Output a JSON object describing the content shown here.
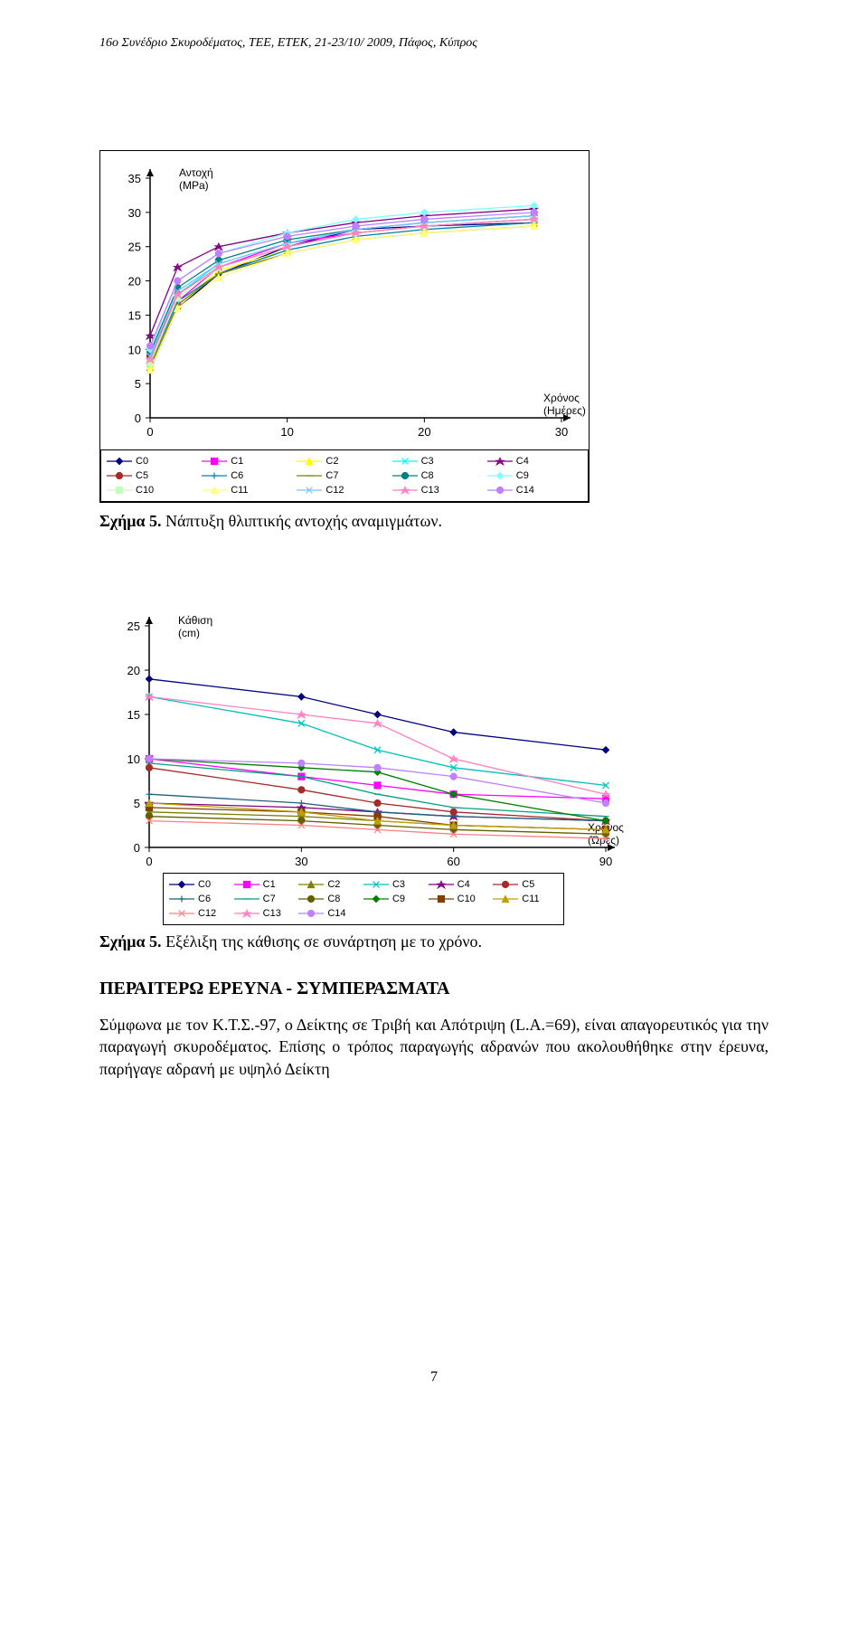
{
  "header": "16ο Συνέδριο Σκυροδέματος, ΤΕΕ, ΕΤΕΚ, 21-23/10/ 2009, Πάφος, Κύπρος",
  "caption1_bold": "Σχήμα 5.",
  "caption1_rest": " Νάπτυξη θλιπτικής αντοχής αναμιγμάτων.",
  "caption2_bold": "Σχήμα 5.",
  "caption2_rest": " Εξέλιξη της κάθισης σε συνάρτηση με το χρόνο.",
  "section_title": "ΠΕΡΑΙΤΕΡΩ ΕΡΕΥΝΑ - ΣΥΜΠΕΡΑΣΜΑΤΑ",
  "paragraph": "Σύμφωνα με τον Κ.Τ.Σ.-97, ο Δείκτης σε Τριβή και Απότριψη (L.A.=69), είναι απαγορευτικός για την παραγωγή σκυροδέματος. Επίσης ο τρόπος παραγωγής αδρανών που ακολουθήθηκε στην έρευνα, παρήγαγε αδρανή με υψηλό Δείκτη",
  "page_number": "7",
  "chart1": {
    "type": "line",
    "y_axis_label_l1": "Αντοχή",
    "y_axis_label_l2": "(MPa)",
    "x_axis_label_l1": "Χρόνος",
    "x_axis_label_l2": "(Ημέρες)",
    "xlim": [
      0,
      30
    ],
    "xtick_step": 10,
    "ylim": [
      0,
      35
    ],
    "ytick_step": 5,
    "background_color": "#ffffff",
    "series": [
      {
        "name": "C0",
        "color": "#000080",
        "marker": "diamond",
        "y": [
          7.0,
          16,
          21,
          25,
          27.5,
          28,
          28.5
        ]
      },
      {
        "name": "C1",
        "color": "#ff00ff",
        "marker": "square",
        "y": [
          8.0,
          17,
          22,
          25.5,
          27,
          28,
          29
        ]
      },
      {
        "name": "C2",
        "color": "#ffff00",
        "marker": "triangle",
        "y": [
          7.5,
          16.5,
          21.5,
          24.5,
          26.5,
          27.5,
          28.5
        ]
      },
      {
        "name": "C3",
        "color": "#00ffff",
        "marker": "x",
        "y": [
          8.5,
          18,
          22.5,
          25.5,
          27.5,
          28.5,
          29.5
        ]
      },
      {
        "name": "C4",
        "color": "#800080",
        "marker": "star",
        "y": [
          12,
          22,
          25,
          27,
          28.5,
          29.5,
          30.5
        ]
      },
      {
        "name": "C5",
        "color": "#a52a2a",
        "marker": "circle",
        "y": [
          9,
          18,
          22,
          25,
          27,
          28,
          29
        ]
      },
      {
        "name": "C6",
        "color": "#0080c0",
        "marker": "plus",
        "y": [
          8,
          17,
          21,
          24.5,
          26.5,
          27.5,
          28.5
        ]
      },
      {
        "name": "C7",
        "color": "#808000",
        "marker": "dash",
        "y": [
          7.5,
          16.5,
          21,
          24,
          26,
          27,
          28
        ]
      },
      {
        "name": "C8",
        "color": "#008080",
        "marker": "circle",
        "y": [
          9.5,
          19,
          23,
          26,
          27.5,
          28.5,
          29.5
        ]
      },
      {
        "name": "C9",
        "color": "#80ffff",
        "marker": "diamond",
        "y": [
          10,
          20,
          24,
          27,
          29,
          30,
          31
        ]
      },
      {
        "name": "C10",
        "color": "#c0ffc0",
        "marker": "square",
        "y": [
          8,
          17.5,
          22,
          25,
          27,
          28,
          29
        ]
      },
      {
        "name": "C11",
        "color": "#ffff80",
        "marker": "triangle",
        "y": [
          7,
          16,
          20.5,
          24,
          26,
          27,
          28
        ]
      },
      {
        "name": "C12",
        "color": "#80c0ff",
        "marker": "x",
        "y": [
          9,
          18.5,
          22.5,
          25.5,
          27.5,
          28.5,
          29.5
        ]
      },
      {
        "name": "C13",
        "color": "#ff80c0",
        "marker": "star",
        "y": [
          8.5,
          18,
          22,
          25,
          27,
          28,
          29
        ]
      },
      {
        "name": "C14",
        "color": "#c080ff",
        "marker": "circle",
        "y": [
          10.5,
          20,
          24,
          26.5,
          28,
          29,
          30
        ]
      }
    ],
    "x_points": [
      0,
      2,
      5,
      10,
      15,
      20,
      28
    ],
    "legend_cols": 5
  },
  "chart2": {
    "type": "line",
    "y_axis_label_l1": "Κάθιση",
    "y_axis_label_l2": "(cm)",
    "x_axis_label_l1": "Χρόνος",
    "x_axis_label_l2": "(Ώρες)",
    "xlim": [
      0,
      90
    ],
    "xtick_step": 30,
    "ylim": [
      0,
      25
    ],
    "ytick_step": 5,
    "background_color": "#ffffff",
    "series": [
      {
        "name": "C0",
        "color": "#000080",
        "marker": "diamond",
        "y": [
          19,
          17,
          15,
          13,
          11
        ]
      },
      {
        "name": "C1",
        "color": "#ff00ff",
        "marker": "square",
        "y": [
          10,
          8,
          7,
          6,
          5.5
        ]
      },
      {
        "name": "C2",
        "color": "#808000",
        "marker": "triangle",
        "y": [
          4,
          3.5,
          3,
          2.5,
          2
        ]
      },
      {
        "name": "C3",
        "color": "#00c0c0",
        "marker": "x",
        "y": [
          17,
          14,
          11,
          9,
          7
        ]
      },
      {
        "name": "C4",
        "color": "#800080",
        "marker": "star",
        "y": [
          5,
          4.5,
          4,
          3.5,
          3
        ]
      },
      {
        "name": "C5",
        "color": "#a52a2a",
        "marker": "circle",
        "y": [
          9,
          6.5,
          5,
          4,
          3
        ]
      },
      {
        "name": "C6",
        "color": "#206080",
        "marker": "plus",
        "y": [
          6,
          5,
          4,
          3.5,
          3
        ]
      },
      {
        "name": "C7",
        "color": "#00a080",
        "marker": "dash",
        "y": [
          9.5,
          8,
          6,
          4.5,
          3.5
        ]
      },
      {
        "name": "C8",
        "color": "#606000",
        "marker": "circle",
        "y": [
          3.5,
          3,
          2.5,
          2,
          1.5
        ]
      },
      {
        "name": "C9",
        "color": "#008000",
        "marker": "diamond",
        "y": [
          10,
          9,
          8.5,
          6,
          3
        ]
      },
      {
        "name": "C10",
        "color": "#804000",
        "marker": "square",
        "y": [
          4.5,
          4,
          3.5,
          2.5,
          2
        ]
      },
      {
        "name": "C11",
        "color": "#c0a000",
        "marker": "triangle",
        "y": [
          5,
          4,
          3,
          2.5,
          2
        ]
      },
      {
        "name": "C12",
        "color": "#ff8080",
        "marker": "x",
        "y": [
          3,
          2.5,
          2,
          1.5,
          1
        ]
      },
      {
        "name": "C13",
        "color": "#ff80c0",
        "marker": "star",
        "y": [
          17,
          15,
          14,
          10,
          6
        ]
      },
      {
        "name": "C14",
        "color": "#c080ff",
        "marker": "circle",
        "y": [
          10,
          9.5,
          9,
          8,
          5
        ]
      }
    ],
    "x_points": [
      0,
      30,
      45,
      60,
      90
    ],
    "legend_cols": 6
  }
}
